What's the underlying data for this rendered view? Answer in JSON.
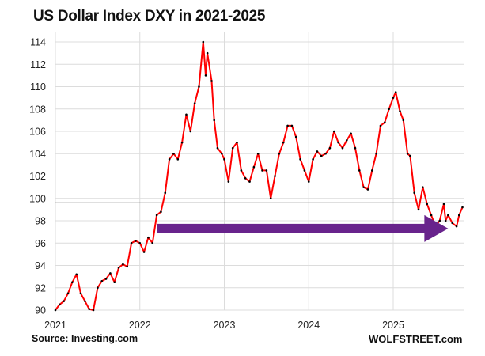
{
  "chart_data": {
    "type": "line",
    "title": "US Dollar Index DXY in 2021-2025",
    "xlabel": "",
    "ylabel": "",
    "xlim": [
      2021,
      2025.82
    ],
    "ylim": [
      90,
      115
    ],
    "x_ticks": [
      "2021",
      "2022",
      "2023",
      "2024",
      "2025"
    ],
    "y_ticks": [
      "90",
      "92",
      "94",
      "96",
      "98",
      "100",
      "102",
      "104",
      "106",
      "108",
      "110",
      "112",
      "114"
    ],
    "grid": true,
    "reference_line": 99.6,
    "annotation_arrow": {
      "from": [
        2022.2,
        97.3
      ],
      "to": [
        2025.65,
        97.3
      ],
      "color": "#68238c"
    },
    "line_color": "#ff0000",
    "marker_color": "#000000",
    "series": [
      {
        "name": "DXY",
        "x": [
          2021.0,
          2021.05,
          2021.1,
          2021.15,
          2021.2,
          2021.25,
          2021.3,
          2021.35,
          2021.4,
          2021.45,
          2021.5,
          2021.55,
          2021.6,
          2021.65,
          2021.7,
          2021.75,
          2021.8,
          2021.85,
          2021.9,
          2021.95,
          2022.0,
          2022.05,
          2022.1,
          2022.15,
          2022.2,
          2022.25,
          2022.3,
          2022.35,
          2022.4,
          2022.45,
          2022.5,
          2022.55,
          2022.6,
          2022.65,
          2022.7,
          2022.75,
          2022.78,
          2022.8,
          2022.85,
          2022.88,
          2022.92,
          2022.97,
          2023.0,
          2023.05,
          2023.1,
          2023.15,
          2023.2,
          2023.25,
          2023.3,
          2023.35,
          2023.4,
          2023.45,
          2023.5,
          2023.55,
          2023.6,
          2023.65,
          2023.7,
          2023.75,
          2023.8,
          2023.85,
          2023.9,
          2023.95,
          2024.0,
          2024.05,
          2024.1,
          2024.15,
          2024.2,
          2024.25,
          2024.3,
          2024.35,
          2024.4,
          2024.45,
          2024.5,
          2024.55,
          2024.6,
          2024.65,
          2024.7,
          2024.75,
          2024.8,
          2024.85,
          2024.9,
          2024.95,
          2025.0,
          2025.03,
          2025.08,
          2025.12,
          2025.17,
          2025.2,
          2025.25,
          2025.3,
          2025.35,
          2025.4,
          2025.45,
          2025.5,
          2025.55,
          2025.6,
          2025.62,
          2025.65,
          2025.7,
          2025.75,
          2025.78,
          2025.82
        ],
        "values": [
          90.0,
          90.5,
          90.8,
          91.5,
          92.5,
          93.2,
          91.5,
          90.8,
          90.1,
          90.0,
          92.0,
          92.6,
          92.8,
          93.3,
          92.5,
          93.8,
          94.1,
          93.9,
          96.0,
          96.2,
          96.0,
          95.2,
          96.5,
          96.0,
          98.5,
          98.8,
          100.5,
          103.5,
          104.0,
          103.5,
          105.0,
          107.5,
          106.0,
          108.5,
          110.0,
          114.0,
          111.0,
          113.0,
          110.5,
          107.0,
          104.5,
          104.0,
          103.5,
          101.5,
          104.5,
          105.0,
          102.5,
          101.8,
          101.5,
          102.8,
          104.0,
          102.5,
          102.5,
          100.0,
          102.0,
          104.0,
          105.0,
          106.5,
          106.5,
          105.5,
          103.5,
          102.5,
          101.5,
          103.5,
          104.2,
          103.8,
          104.0,
          104.5,
          106.0,
          105.0,
          104.5,
          105.2,
          105.8,
          104.5,
          102.5,
          101.0,
          100.8,
          102.5,
          104.0,
          106.5,
          106.8,
          108.0,
          109.0,
          109.5,
          107.8,
          107.0,
          104.0,
          103.8,
          100.5,
          99.0,
          101.0,
          99.5,
          98.5,
          97.5,
          98.0,
          99.5,
          98.0,
          98.5,
          97.8,
          97.5,
          98.5,
          99.2
        ]
      }
    ]
  },
  "source": "Source: Investing.com",
  "brand": "WOLFSTREET.com"
}
